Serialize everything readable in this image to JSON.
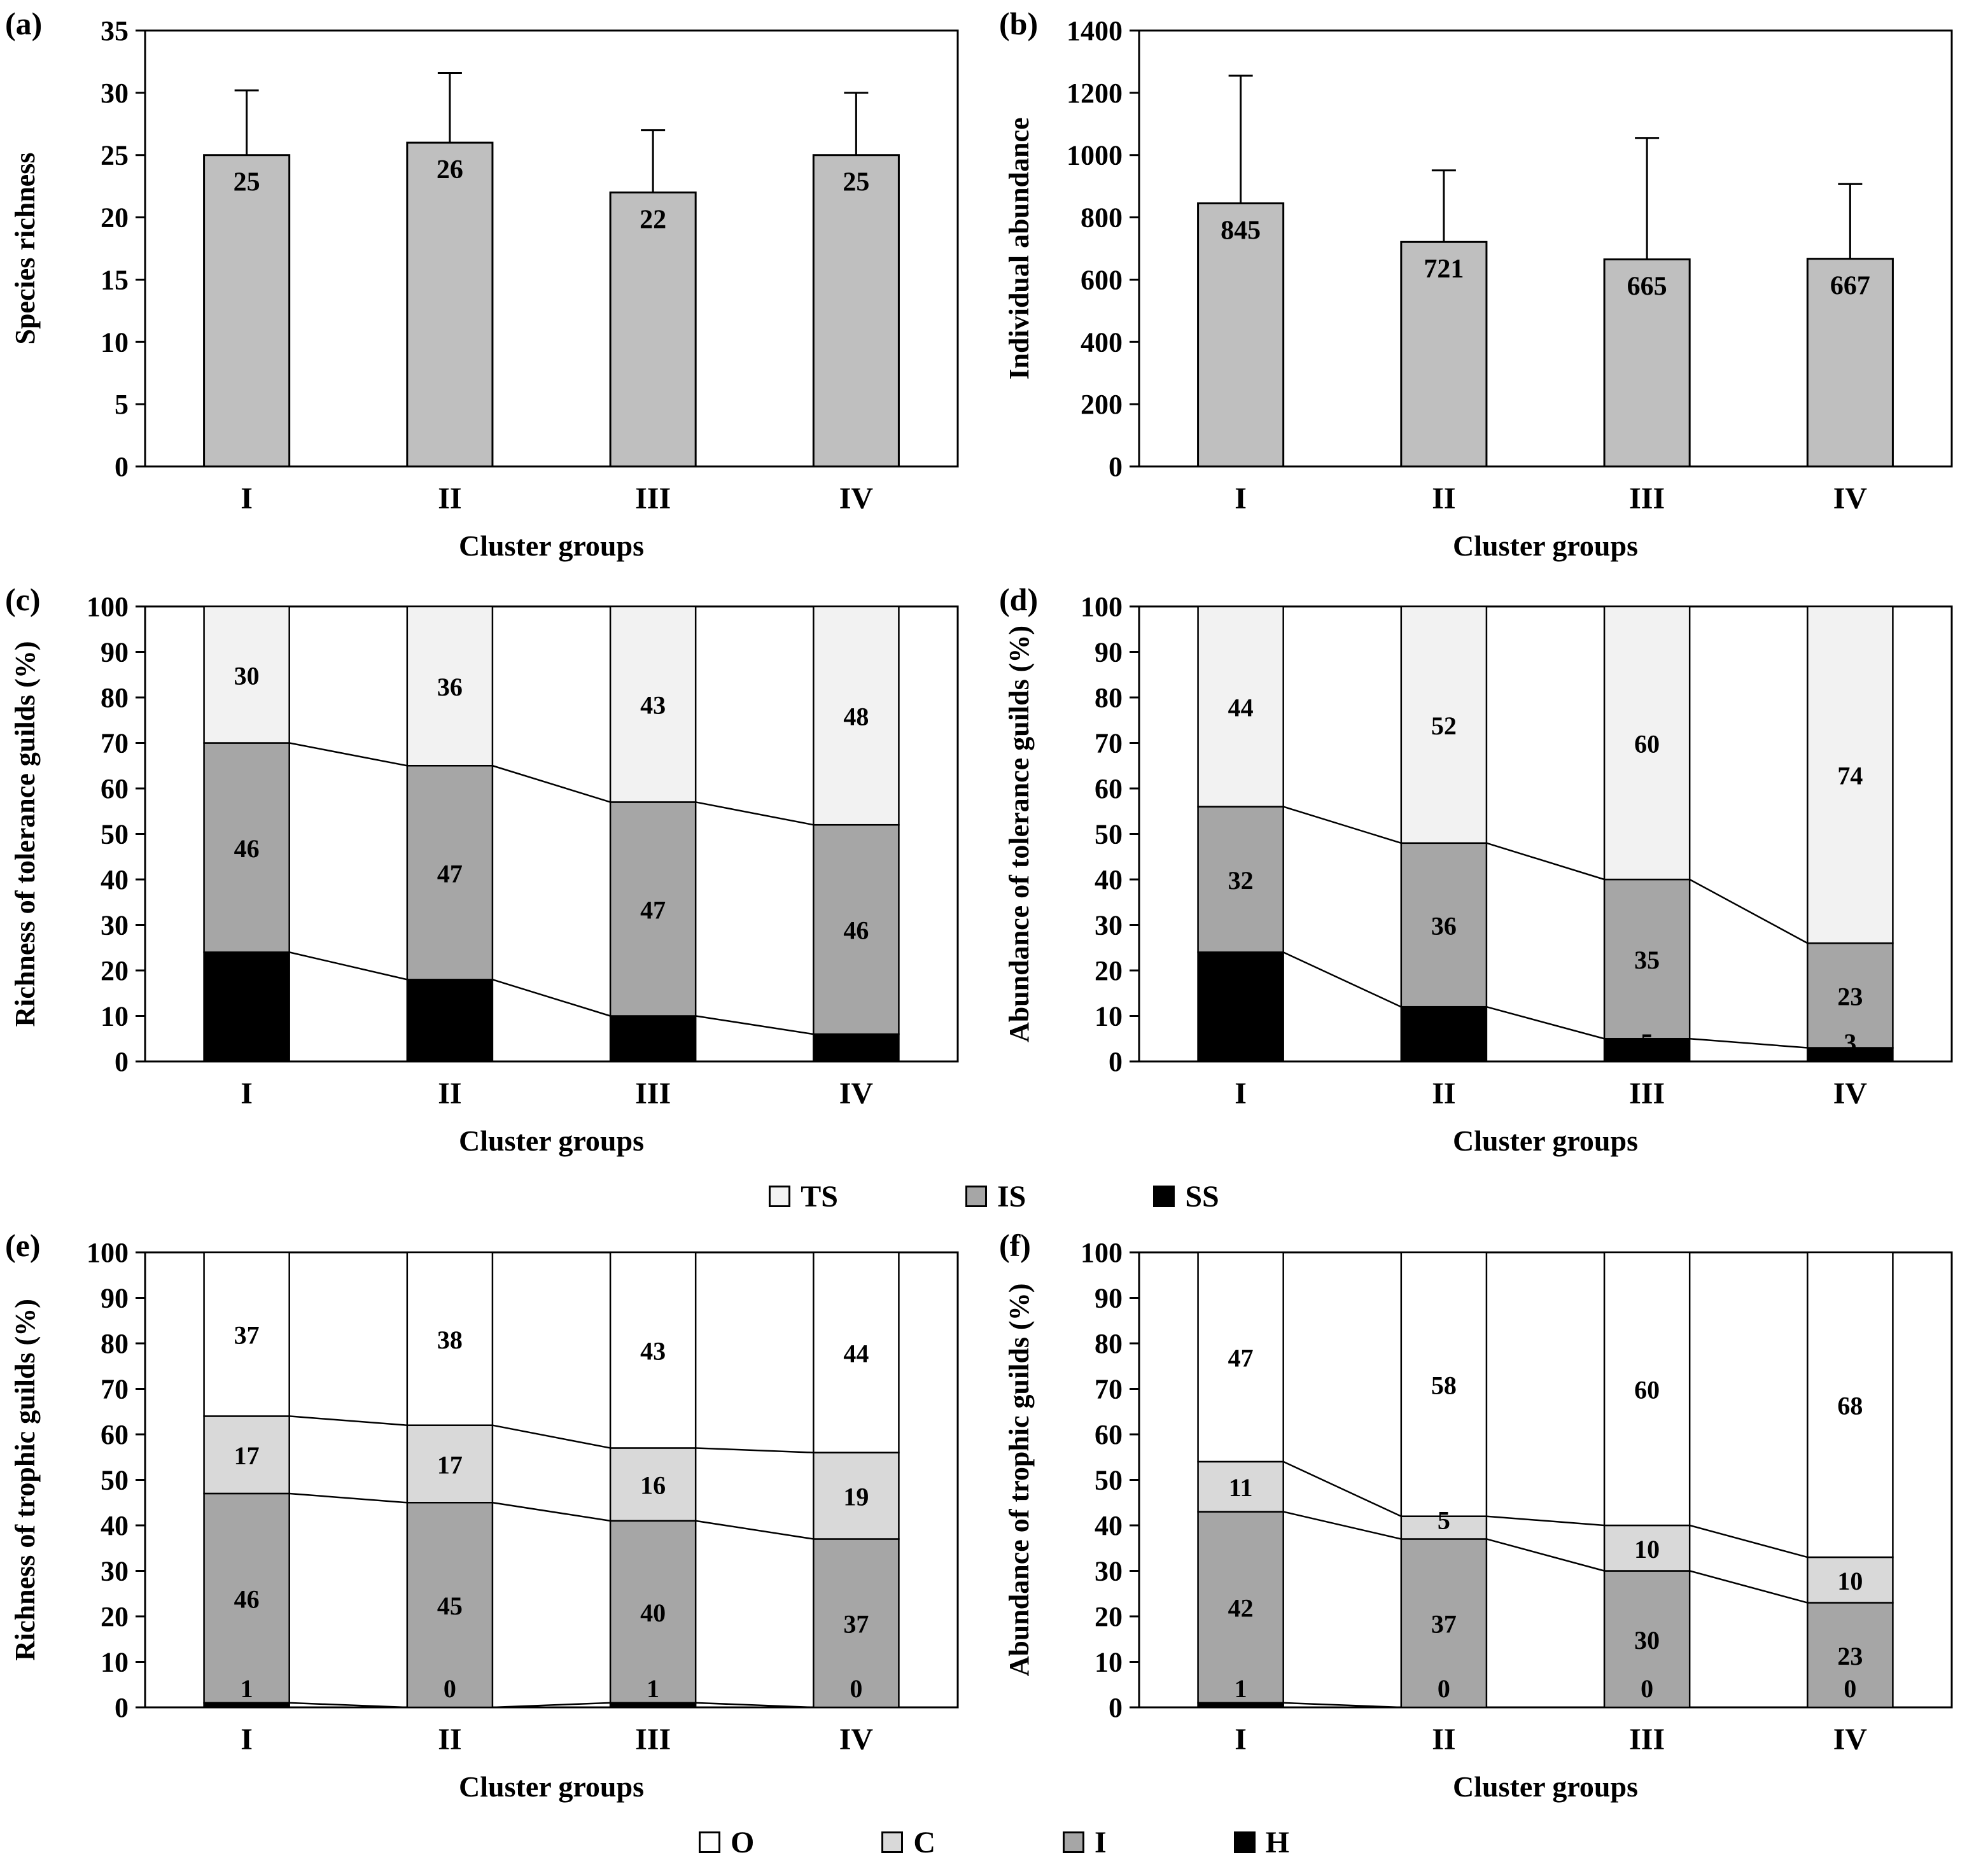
{
  "figure": {
    "background": "#ffffff"
  },
  "colors": {
    "bar_gray": "#bfbfbf",
    "light_gray": "#f2f2f2",
    "mid_gray": "#a6a6a6",
    "pale_gray": "#d9d9d9",
    "black": "#000000",
    "white": "#ffffff"
  },
  "chart_data": [
    {
      "panel": "(a)",
      "type": "bar",
      "title": "",
      "ylabel": "Species richness",
      "xlabel": "Cluster groups",
      "categories": [
        "I",
        "II",
        "III",
        "IV"
      ],
      "values": [
        25,
        26,
        22,
        25
      ],
      "errors_plus": [
        5.2,
        5.6,
        5.0,
        5.0
      ],
      "ylim": [
        0,
        35
      ],
      "ytick": 5,
      "bar_color": "#bfbfbf",
      "grid": false
    },
    {
      "panel": "(b)",
      "type": "bar",
      "title": "",
      "ylabel": "Individual  abundance",
      "xlabel": "Cluster groups",
      "categories": [
        "I",
        "II",
        "III",
        "IV"
      ],
      "values": [
        845,
        721,
        665,
        667
      ],
      "errors_plus": [
        410,
        230,
        390,
        240
      ],
      "ylim": [
        0,
        1400
      ],
      "ytick": 200,
      "bar_color": "#bfbfbf",
      "grid": false
    },
    {
      "panel": "(c)",
      "type": "stacked",
      "title": "",
      "ylabel": "Richness of tolerance guilds  (%)",
      "xlabel": "Cluster groups",
      "categories": [
        "I",
        "II",
        "III",
        "IV"
      ],
      "ylim": [
        0,
        100
      ],
      "ytick": 10,
      "series": [
        {
          "name": "SS",
          "color": "#000000",
          "label_color": "#ffffff",
          "values": [
            24,
            18,
            10,
            6
          ]
        },
        {
          "name": "IS",
          "color": "#a6a6a6",
          "label_color": "#000000",
          "values": [
            46,
            47,
            47,
            46
          ]
        },
        {
          "name": "TS",
          "color": "#f2f2f2",
          "label_color": "#000000",
          "values": [
            30,
            36,
            43,
            48
          ]
        }
      ]
    },
    {
      "panel": "(d)",
      "type": "stacked",
      "title": "",
      "ylabel": "Abundance  of tolerance  guilds  (%)",
      "xlabel": "Cluster groups",
      "categories": [
        "I",
        "II",
        "III",
        "IV"
      ],
      "ylim": [
        0,
        100
      ],
      "ytick": 10,
      "series": [
        {
          "name": "SS",
          "color": "#000000",
          "label_color": "#ffffff",
          "values": [
            24,
            12,
            5,
            3
          ]
        },
        {
          "name": "IS",
          "color": "#a6a6a6",
          "label_color": "#000000",
          "values": [
            32,
            36,
            35,
            23
          ]
        },
        {
          "name": "TS",
          "color": "#f2f2f2",
          "label_color": "#000000",
          "values": [
            44,
            52,
            60,
            74
          ]
        }
      ]
    },
    {
      "panel": "(e)",
      "type": "stacked",
      "title": "",
      "ylabel": "Richness of trophic  guilds  (%)",
      "xlabel": "Cluster groups",
      "categories": [
        "I",
        "II",
        "III",
        "IV"
      ],
      "ylim": [
        0,
        100
      ],
      "ytick": 10,
      "series": [
        {
          "name": "H",
          "color": "#000000",
          "label_color": "#ffffff",
          "values": [
            1,
            0,
            1,
            0
          ]
        },
        {
          "name": "I",
          "color": "#a6a6a6",
          "label_color": "#000000",
          "values": [
            46,
            45,
            40,
            37
          ]
        },
        {
          "name": "C",
          "color": "#d9d9d9",
          "label_color": "#000000",
          "values": [
            17,
            17,
            16,
            19
          ]
        },
        {
          "name": "O",
          "color": "#ffffff",
          "label_color": "#000000",
          "values": [
            37,
            38,
            43,
            44
          ]
        }
      ]
    },
    {
      "panel": "(f)",
      "type": "stacked",
      "title": "",
      "ylabel": "Abundance  of  trophic  guilds  (%)",
      "xlabel": "Cluster groups",
      "categories": [
        "I",
        "II",
        "III",
        "IV"
      ],
      "ylim": [
        0,
        100
      ],
      "ytick": 10,
      "series": [
        {
          "name": "H",
          "color": "#000000",
          "label_color": "#ffffff",
          "values": [
            1,
            0,
            0,
            0
          ]
        },
        {
          "name": "I",
          "color": "#a6a6a6",
          "label_color": "#000000",
          "values": [
            42,
            37,
            30,
            23
          ]
        },
        {
          "name": "C",
          "color": "#d9d9d9",
          "label_color": "#000000",
          "values": [
            11,
            5,
            10,
            10
          ]
        },
        {
          "name": "O",
          "color": "#ffffff",
          "label_color": "#000000",
          "values": [
            47,
            58,
            60,
            68
          ]
        }
      ]
    }
  ],
  "legends": [
    {
      "name": "tolerance-guilds-legend",
      "items": [
        {
          "label": "TS",
          "color": "#f2f2f2"
        },
        {
          "label": "IS",
          "color": "#a6a6a6"
        },
        {
          "label": "SS",
          "color": "#000000"
        }
      ]
    },
    {
      "name": "trophic-guilds-legend",
      "items": [
        {
          "label": "O",
          "color": "#ffffff"
        },
        {
          "label": "C",
          "color": "#d9d9d9"
        },
        {
          "label": "I",
          "color": "#a6a6a6"
        },
        {
          "label": "H",
          "color": "#000000"
        }
      ]
    }
  ]
}
